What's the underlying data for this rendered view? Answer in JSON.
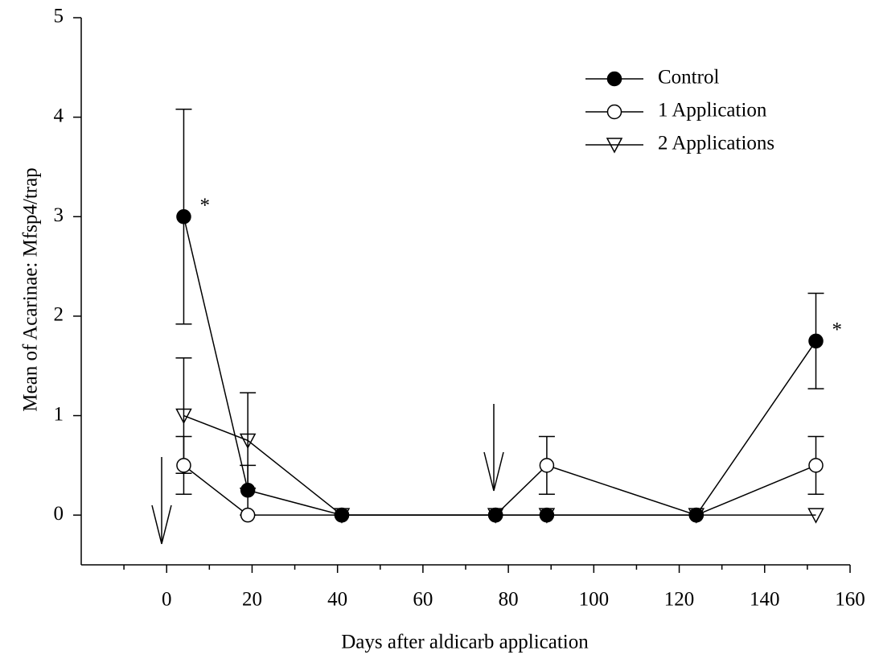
{
  "chart_data": {
    "type": "line",
    "x_label": "Days after aldicarb application",
    "y_label": "Mean of Acarinae: Mfsp4/trap",
    "x": [
      4,
      19,
      41,
      77,
      89,
      124,
      152
    ],
    "series": [
      {
        "name": "Control",
        "color": "#000000",
        "marker": "filled-circle",
        "values": [
          3,
          0.25,
          0,
          0,
          0,
          0,
          1.75
        ],
        "errors": [
          1.08,
          0.25,
          null,
          null,
          null,
          null,
          0.48
        ],
        "annotations": [
          "*",
          null,
          null,
          null,
          null,
          null,
          "*"
        ]
      },
      {
        "name": "1 Application",
        "color": "#000000",
        "marker": "open-circle",
        "values": [
          0.5,
          0,
          0,
          0,
          0.5,
          0,
          0.5
        ],
        "errors": [
          0.29,
          null,
          null,
          null,
          0.29,
          null,
          0.29
        ]
      },
      {
        "name": "2 Applications",
        "color": "#000000",
        "marker": "triangle-down",
        "values": [
          1,
          0.75,
          0,
          0,
          0,
          0,
          0
        ],
        "errors": [
          0.58,
          0.48,
          null,
          null,
          null,
          null,
          null
        ]
      }
    ],
    "xlim": [
      -20,
      160
    ],
    "xticks": [
      0,
      20,
      40,
      60,
      80,
      100,
      120,
      140,
      160
    ],
    "xminorticks": [
      -10,
      10,
      30,
      50,
      70,
      90,
      110,
      130,
      150
    ],
    "ylim": [
      -0.5,
      5
    ],
    "yticks": [
      0,
      1,
      2,
      3,
      4,
      5
    ],
    "legend": "upper right"
  }
}
